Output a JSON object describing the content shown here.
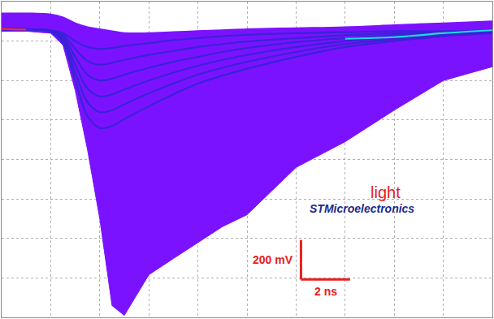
{
  "chart_data": {
    "type": "line",
    "x": [
      0,
      1,
      2,
      2.5,
      3,
      3.5,
      4,
      4.5,
      5,
      6,
      7,
      8,
      9,
      10,
      12,
      14,
      16,
      18,
      20
    ],
    "series": [
      {
        "type": "line",
        "color": "#7b12ff",
        "values": [
          740,
          740,
          735,
          720,
          690,
          670,
          660,
          650,
          640,
          640,
          645,
          650,
          655,
          660,
          665,
          670,
          680,
          690,
          700
        ]
      },
      {
        "type": "area",
        "color": "#7b12ff",
        "values": [
          650,
          650,
          640,
          580,
          350,
          50,
          -300,
          -740,
          -790,
          -584,
          -502,
          -420,
          -340,
          -280,
          -40,
          90,
          250,
          400,
          470
        ]
      },
      {
        "type": "line",
        "color": "#3a22d8",
        "values": [
          660,
          660,
          655,
          640,
          600,
          570,
          560,
          565,
          575,
          590,
          605,
          615,
          625,
          632,
          640,
          645,
          650,
          650,
          655
        ]
      },
      {
        "type": "line",
        "color": "#3a22d8",
        "values": [
          660,
          660,
          655,
          630,
          560,
          500,
          480,
          490,
          505,
          530,
          550,
          570,
          585,
          598,
          615,
          630,
          640,
          645,
          650
        ]
      },
      {
        "type": "line",
        "color": "#3a22d8",
        "values": [
          660,
          660,
          650,
          620,
          520,
          430,
          400,
          410,
          430,
          465,
          495,
          520,
          545,
          565,
          595,
          615,
          630,
          640,
          648
        ]
      },
      {
        "type": "line",
        "color": "#3a22d8",
        "values": [
          660,
          660,
          650,
          610,
          480,
          360,
          320,
          330,
          355,
          400,
          440,
          475,
          505,
          530,
          570,
          600,
          620,
          635,
          645
        ]
      },
      {
        "type": "line",
        "color": "#3a22d8",
        "values": [
          660,
          660,
          648,
          600,
          440,
          290,
          240,
          250,
          280,
          335,
          385,
          430,
          465,
          495,
          545,
          585,
          610,
          630,
          642
        ]
      },
      {
        "type": "line",
        "color": "#3a22d8",
        "values": [
          660,
          660,
          646,
          590,
          400,
          220,
          160,
          170,
          205,
          270,
          330,
          385,
          425,
          460,
          520,
          570,
          600,
          625,
          640
        ]
      },
      {
        "type": "line",
        "color": "#ff2a1a",
        "values": [
          662,
          658,
          null,
          null,
          null,
          null,
          null,
          null,
          null,
          null,
          null,
          null,
          null,
          null,
          null,
          null,
          null,
          null,
          null
        ]
      },
      {
        "type": "line",
        "color": "#22d8e0",
        "values": [
          null,
          null,
          null,
          null,
          null,
          null,
          null,
          null,
          null,
          null,
          null,
          null,
          null,
          null,
          null,
          612,
          620,
          640,
          655
        ]
      }
    ],
    "xlim": [
      0,
      20
    ],
    "ylim": [
      -800,
      800
    ],
    "xticks": [
      0,
      2,
      4,
      6,
      8,
      10,
      12,
      14,
      16,
      18,
      20
    ],
    "yticks": [
      -800,
      -600,
      -400,
      -200,
      0,
      200,
      400,
      600,
      800
    ],
    "grid": true,
    "tick_labels": false,
    "annotations": [
      {
        "text": "light",
        "color": "#e8201e"
      },
      {
        "text": "STMicroelectronics",
        "color": "#1c2a8c"
      }
    ],
    "scale_bar": {
      "x_length": 2,
      "y_length": 200,
      "x_label": "2 ns",
      "y_label": "200 mV",
      "color": "#e8201e"
    }
  }
}
